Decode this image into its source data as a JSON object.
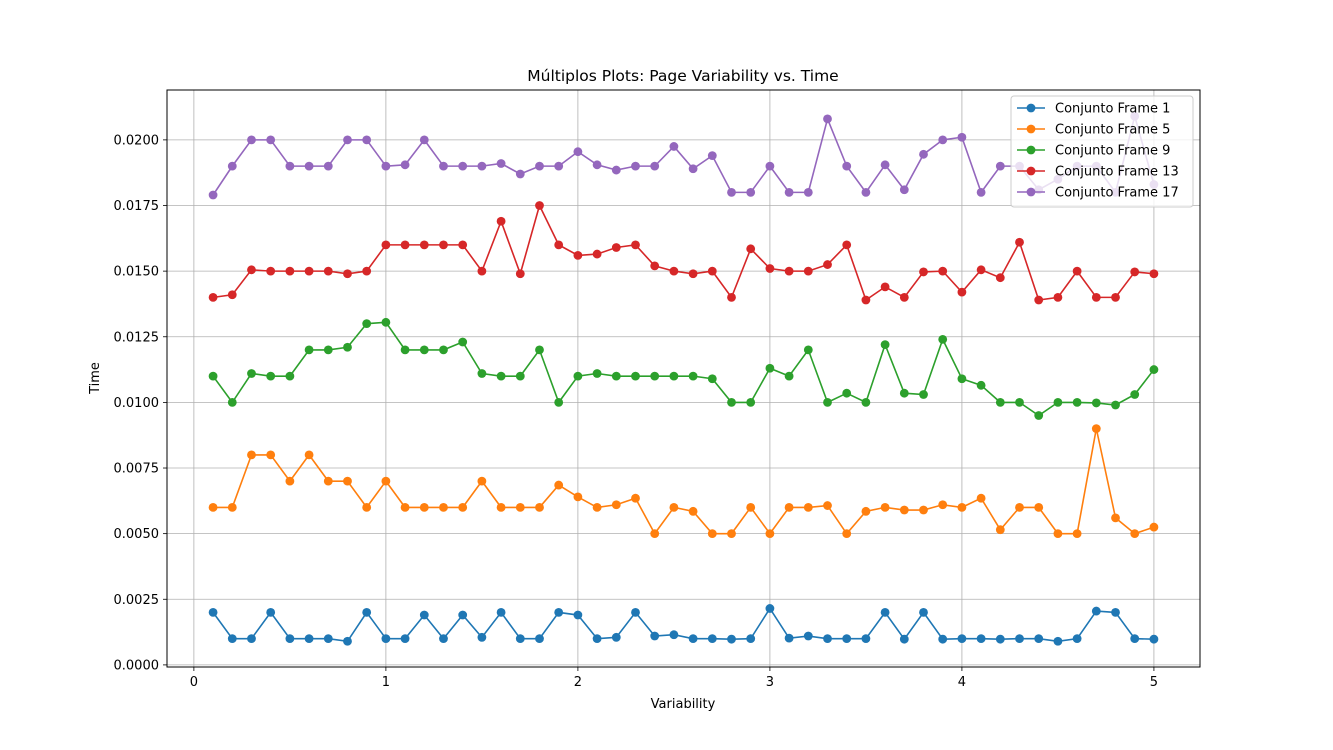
{
  "chart_data": {
    "type": "line",
    "title": "Múltiplos Plots: Page Variability vs. Time",
    "xlabel": "Variability",
    "ylabel": "Time",
    "xlim": [
      -0.14,
      5.24
    ],
    "ylim": [
      -8e-05,
      0.0219
    ],
    "xticks": [
      0,
      1,
      2,
      3,
      4,
      5
    ],
    "xtick_labels": [
      "0",
      "1",
      "2",
      "3",
      "4",
      "5"
    ],
    "yticks": [
      0.0,
      0.0025,
      0.005,
      0.0075,
      0.01,
      0.0125,
      0.015,
      0.0175,
      0.02
    ],
    "ytick_labels": [
      "0.0000",
      "0.0025",
      "0.0050",
      "0.0075",
      "0.0100",
      "0.0125",
      "0.0150",
      "0.0175",
      "0.0200"
    ],
    "grid": true,
    "legend_position": "top-right",
    "x": [
      0.1,
      0.2,
      0.3,
      0.4,
      0.5,
      0.6,
      0.7,
      0.8,
      0.9,
      1.0,
      1.1,
      1.2,
      1.3,
      1.4,
      1.5,
      1.6,
      1.7,
      1.8,
      1.9,
      2.0,
      2.1,
      2.2,
      2.3,
      2.4,
      2.5,
      2.6,
      2.7,
      2.8,
      2.9,
      3.0,
      3.1,
      3.2,
      3.3,
      3.4,
      3.5,
      3.6,
      3.7,
      3.8,
      3.9,
      4.0,
      4.1,
      4.2,
      4.3,
      4.4,
      4.5,
      4.6,
      4.7,
      4.8,
      4.9,
      5.0
    ],
    "series": [
      {
        "name": "Conjunto Frame 1",
        "color": "#1f77b4",
        "values": [
          0.002,
          0.001,
          0.001,
          0.002,
          0.001,
          0.001,
          0.001,
          0.0009,
          0.002,
          0.001,
          0.001,
          0.0019,
          0.001,
          0.0019,
          0.00105,
          0.002,
          0.001,
          0.001,
          0.002,
          0.0019,
          0.001,
          0.00105,
          0.002,
          0.0011,
          0.00115,
          0.001,
          0.001,
          0.00098,
          0.001,
          0.00215,
          0.00102,
          0.0011,
          0.001,
          0.001,
          0.001,
          0.002,
          0.00098,
          0.002,
          0.00098,
          0.001,
          0.001,
          0.00098,
          0.001,
          0.001,
          0.0009,
          0.001,
          0.00205,
          0.002,
          0.001,
          0.00098
        ]
      },
      {
        "name": "Conjunto Frame 5",
        "color": "#ff7f0e",
        "values": [
          0.006,
          0.006,
          0.008,
          0.008,
          0.007,
          0.008,
          0.007,
          0.007,
          0.006,
          0.007,
          0.006,
          0.006,
          0.006,
          0.006,
          0.007,
          0.006,
          0.006,
          0.006,
          0.00685,
          0.0064,
          0.006,
          0.0061,
          0.00635,
          0.005,
          0.006,
          0.00585,
          0.005,
          0.005,
          0.006,
          0.005,
          0.006,
          0.006,
          0.00607,
          0.005,
          0.00585,
          0.006,
          0.0059,
          0.0059,
          0.0061,
          0.006,
          0.00635,
          0.00515,
          0.006,
          0.006,
          0.005,
          0.005,
          0.009,
          0.0056,
          0.005,
          0.00525
        ]
      },
      {
        "name": "Conjunto Frame 9",
        "color": "#2ca02c",
        "values": [
          0.011,
          0.01,
          0.0111,
          0.011,
          0.011,
          0.012,
          0.012,
          0.0121,
          0.013,
          0.01305,
          0.012,
          0.012,
          0.012,
          0.0123,
          0.0111,
          0.011,
          0.011,
          0.012,
          0.01,
          0.011,
          0.0111,
          0.011,
          0.011,
          0.011,
          0.011,
          0.011,
          0.0109,
          0.01,
          0.01,
          0.0113,
          0.011,
          0.012,
          0.01,
          0.01035,
          0.01,
          0.0122,
          0.01035,
          0.0103,
          0.0124,
          0.0109,
          0.01065,
          0.01,
          0.01,
          0.0095,
          0.01,
          0.01,
          0.00998,
          0.0099,
          0.0103,
          0.01125
        ]
      },
      {
        "name": "Conjunto Frame 13",
        "color": "#d62728",
        "values": [
          0.014,
          0.0141,
          0.01505,
          0.015,
          0.015,
          0.015,
          0.015,
          0.0149,
          0.015,
          0.016,
          0.016,
          0.016,
          0.016,
          0.016,
          0.015,
          0.0169,
          0.0149,
          0.0175,
          0.016,
          0.0156,
          0.01565,
          0.0159,
          0.016,
          0.0152,
          0.015,
          0.0149,
          0.015,
          0.014,
          0.01585,
          0.0151,
          0.015,
          0.015,
          0.01525,
          0.016,
          0.0139,
          0.0144,
          0.014,
          0.01497,
          0.015,
          0.0142,
          0.01505,
          0.01475,
          0.0161,
          0.0139,
          0.014,
          0.015,
          0.014,
          0.014,
          0.01497,
          0.0149
        ]
      },
      {
        "name": "Conjunto Frame 17",
        "color": "#9467bd",
        "values": [
          0.0179,
          0.019,
          0.02,
          0.02,
          0.019,
          0.019,
          0.019,
          0.02,
          0.02,
          0.019,
          0.01905,
          0.02,
          0.019,
          0.019,
          0.019,
          0.0191,
          0.0187,
          0.019,
          0.019,
          0.01955,
          0.01905,
          0.01885,
          0.019,
          0.019,
          0.01975,
          0.0189,
          0.0194,
          0.018,
          0.018,
          0.019,
          0.018,
          0.018,
          0.0208,
          0.019,
          0.018,
          0.01905,
          0.0181,
          0.01945,
          0.02,
          0.0201,
          0.018,
          0.019,
          0.019,
          0.0181,
          0.0185,
          0.019,
          0.019,
          0.018,
          0.0209,
          0.0183
        ]
      }
    ]
  }
}
